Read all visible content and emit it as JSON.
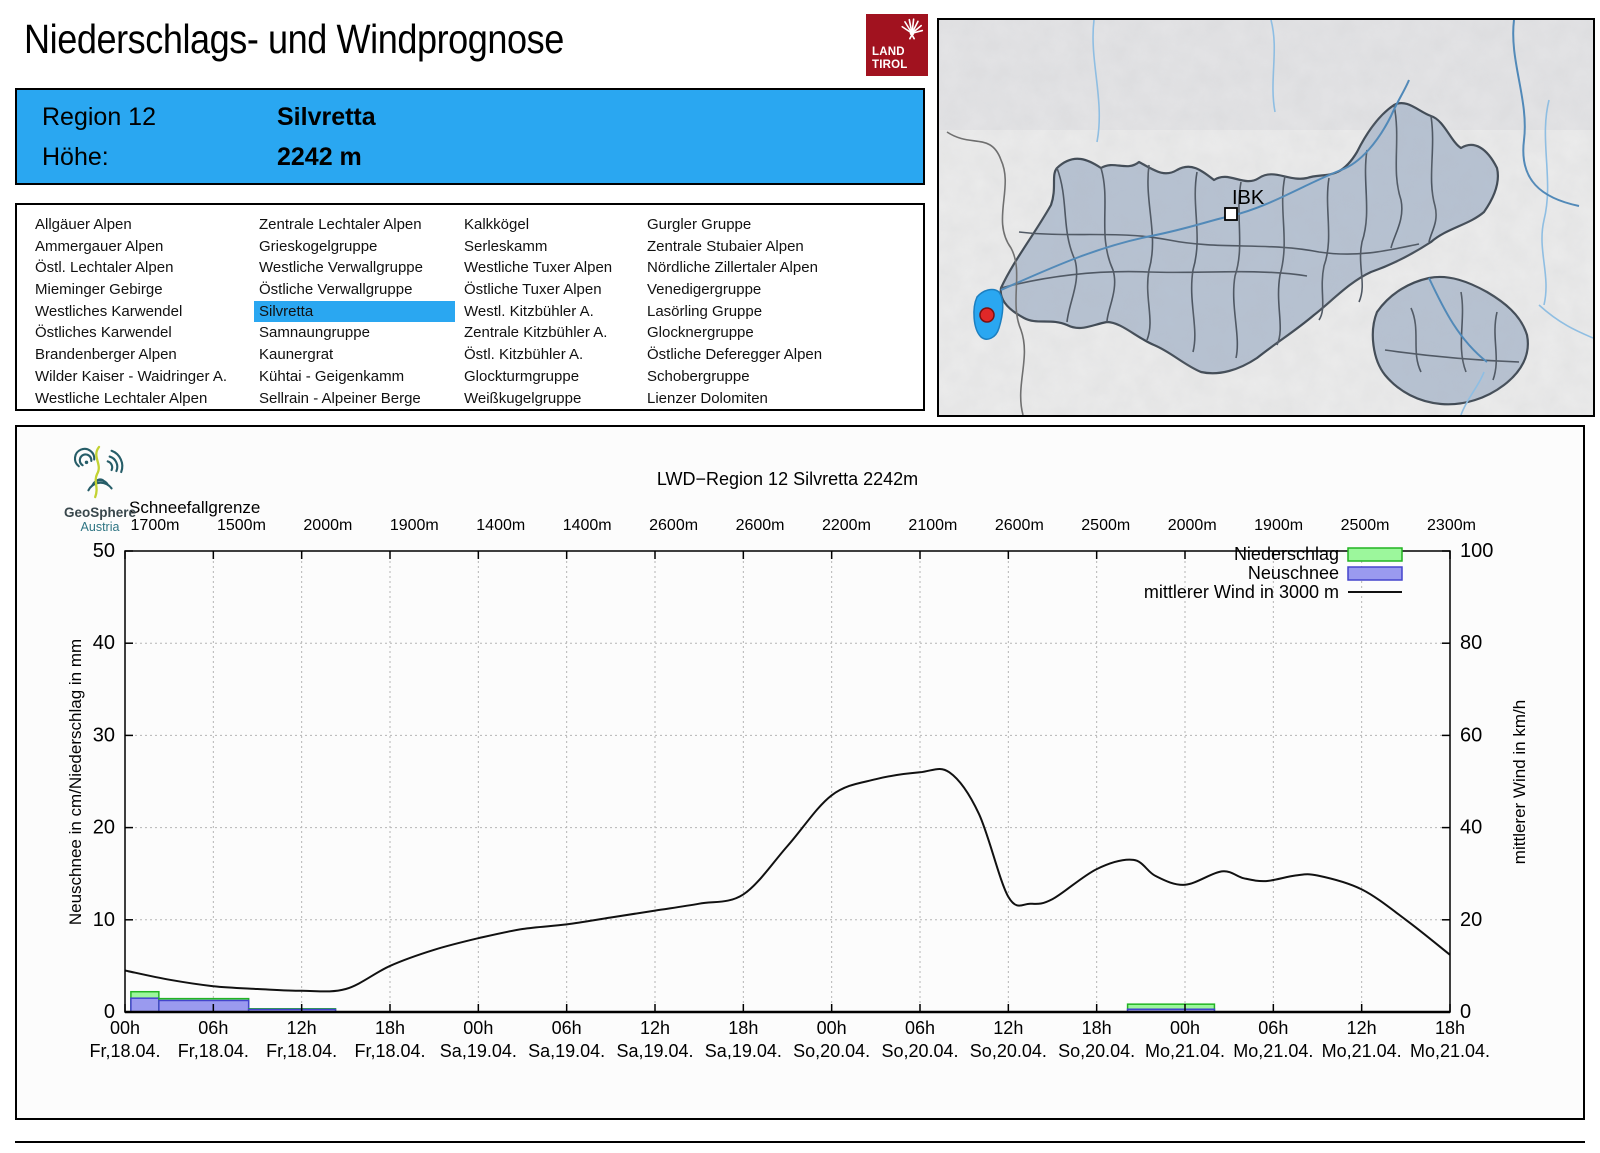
{
  "header": {
    "title": "Niederschlags- und Windprognose",
    "logo": {
      "line1": "LAND",
      "line2": "TIROL"
    }
  },
  "region_box": {
    "region_label": "Region 12",
    "region_name": "Silvretta",
    "hoehe_label": "Höhe:",
    "hoehe_value": "2242 m"
  },
  "region_list": {
    "selected": "Silvretta",
    "columns": [
      [
        "Allgäuer Alpen",
        "Ammergauer Alpen",
        "Östl. Lechtaler Alpen",
        "Mieminger Gebirge",
        "Westliches Karwendel",
        "Östliches Karwendel",
        "Brandenberger Alpen",
        "Wilder Kaiser - Waidringer A.",
        "Westliche Lechtaler Alpen"
      ],
      [
        "Zentrale Lechtaler Alpen",
        "Grieskogelgruppe",
        "Westliche Verwallgruppe",
        "Östliche Verwallgruppe",
        "Silvretta",
        "Samnaungruppe",
        "Kaunergrat",
        "Kühtai - Geigenkamm",
        "Sellrain - Alpeiner Berge"
      ],
      [
        "Kalkkögel",
        "Serleskamm",
        "Westliche Tuxer Alpen",
        "Östliche Tuxer Alpen",
        "Westl. Kitzbühler A.",
        "Zentrale Kitzbühler A.",
        "Östl. Kitzbühler A.",
        "Glockturmgruppe",
        "Weißkugelgruppe"
      ],
      [
        "Gurgler Gruppe",
        "Zentrale Stubaier Alpen",
        "Nördliche Zillertaler Alpen",
        "Venedigergruppe",
        "Lasörling Gruppe",
        "Glocknergruppe",
        "Östliche Deferegger Alpen",
        "Schobergruppe",
        "Lienzer Dolomiten"
      ]
    ]
  },
  "map": {
    "city_label": "IBK",
    "highlight_color": "#2aa7f1",
    "marker_color": "#e02828"
  },
  "geosphere": {
    "name": "GeoSphere",
    "country": "Austria"
  },
  "chart_data": {
    "type": "line+bar",
    "title": "LWD−Region 12 Silvretta 2242m",
    "snowline_label": "Schneefallgrenze",
    "snowline_values": [
      "1700m",
      "1500m",
      "2000m",
      "1900m",
      "1400m",
      "1400m",
      "2600m",
      "2600m",
      "2200m",
      "2100m",
      "2600m",
      "2500m",
      "2000m",
      "1900m",
      "2500m",
      "2300m"
    ],
    "left_axis": {
      "label": "Neuschnee in cm/Niederschlag in mm",
      "ticks": [
        0,
        10,
        20,
        30,
        40,
        50
      ],
      "range": [
        0,
        50
      ]
    },
    "right_axis": {
      "label": "mittlerer Wind in km/h",
      "ticks": [
        0,
        20,
        40,
        60,
        80,
        100
      ],
      "range": [
        0,
        100
      ]
    },
    "x_ticks": [
      {
        "hour": "00h",
        "date": "Fr,18.04."
      },
      {
        "hour": "06h",
        "date": "Fr,18.04."
      },
      {
        "hour": "12h",
        "date": "Fr,18.04."
      },
      {
        "hour": "18h",
        "date": "Fr,18.04."
      },
      {
        "hour": "00h",
        "date": "Sa,19.04."
      },
      {
        "hour": "06h",
        "date": "Sa,19.04."
      },
      {
        "hour": "12h",
        "date": "Sa,19.04."
      },
      {
        "hour": "18h",
        "date": "Sa,19.04."
      },
      {
        "hour": "00h",
        "date": "So,20.04."
      },
      {
        "hour": "06h",
        "date": "So,20.04."
      },
      {
        "hour": "12h",
        "date": "So,20.04."
      },
      {
        "hour": "18h",
        "date": "So,20.04."
      },
      {
        "hour": "00h",
        "date": "Mo,21.04."
      },
      {
        "hour": "06h",
        "date": "Mo,21.04."
      },
      {
        "hour": "12h",
        "date": "Mo,21.04."
      },
      {
        "hour": "18h",
        "date": "Mo,21.04."
      }
    ],
    "legend": [
      {
        "label": "Niederschlag",
        "type": "box",
        "fill": "#9cf79c",
        "edge": "#22b422"
      },
      {
        "label": "Neuschnee",
        "type": "box",
        "fill": "#9a9aef",
        "edge": "#4444cc"
      },
      {
        "label": "mittlerer Wind in 3000 m",
        "type": "line",
        "edge": "#111111"
      }
    ],
    "precip_bars": [
      {
        "start_h": 0.4,
        "end_h": 2.3,
        "niederschlag_mm": 2.2,
        "neuschnee_cm": 1.5
      },
      {
        "start_h": 2.3,
        "end_h": 8.4,
        "niederschlag_mm": 1.45,
        "neuschnee_cm": 1.25
      },
      {
        "start_h": 8.4,
        "end_h": 14.3,
        "niederschlag_mm": 0.35,
        "neuschnee_cm": 0.28
      },
      {
        "start_h": 68.1,
        "end_h": 74.0,
        "niederschlag_mm": 0.85,
        "neuschnee_cm": 0.3
      }
    ],
    "wind_series": {
      "name": "mittlerer Wind in 3000 m",
      "unit": "km/h",
      "hours_range": [
        0,
        90
      ],
      "points": [
        [
          0,
          9
        ],
        [
          3,
          7
        ],
        [
          6,
          5.6
        ],
        [
          9,
          5
        ],
        [
          12,
          4.6
        ],
        [
          15,
          5
        ],
        [
          18,
          10
        ],
        [
          21,
          13.5
        ],
        [
          24,
          16
        ],
        [
          27,
          18
        ],
        [
          30,
          19
        ],
        [
          33,
          20.5
        ],
        [
          36,
          22
        ],
        [
          39,
          23.5
        ],
        [
          42,
          25.5
        ],
        [
          45,
          36
        ],
        [
          48,
          47
        ],
        [
          51,
          50.5
        ],
        [
          54,
          52
        ],
        [
          56,
          52
        ],
        [
          58,
          43
        ],
        [
          60,
          25
        ],
        [
          61.5,
          23.5
        ],
        [
          63,
          24.5
        ],
        [
          66,
          31
        ],
        [
          68.5,
          33
        ],
        [
          70,
          29.5
        ],
        [
          72,
          27.6
        ],
        [
          74.5,
          30.5
        ],
        [
          76,
          29
        ],
        [
          77.5,
          28.4
        ],
        [
          79.5,
          29.6
        ],
        [
          81,
          29.6
        ],
        [
          84,
          26.6
        ],
        [
          87,
          20
        ],
        [
          90,
          12.4
        ]
      ]
    },
    "colors": {
      "grid": "#b5b5b5",
      "axis": "#000000"
    }
  }
}
